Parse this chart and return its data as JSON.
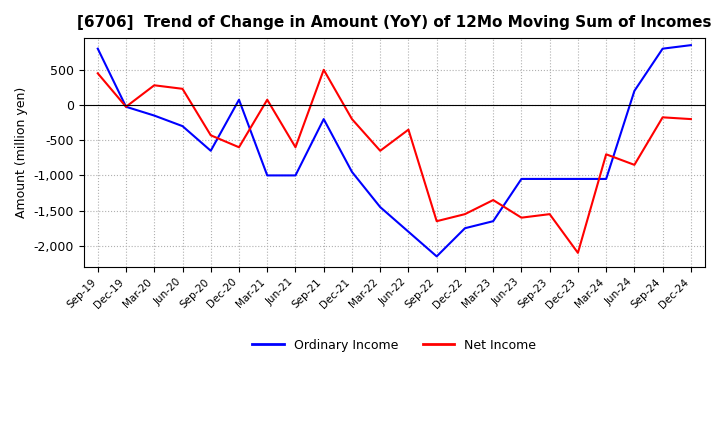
{
  "title": "[6706]  Trend of Change in Amount (YoY) of 12Mo Moving Sum of Incomes",
  "ylabel": "Amount (million yen)",
  "x_labels": [
    "Sep-19",
    "Dec-19",
    "Mar-20",
    "Jun-20",
    "Sep-20",
    "Dec-20",
    "Mar-21",
    "Jun-21",
    "Sep-21",
    "Dec-21",
    "Mar-22",
    "Jun-22",
    "Sep-22",
    "Dec-22",
    "Mar-23",
    "Jun-23",
    "Sep-23",
    "Dec-23",
    "Mar-24",
    "Jun-24",
    "Sep-24",
    "Dec-24"
  ],
  "ordinary_income": [
    800,
    -25,
    -150,
    -300,
    -650,
    75,
    -1000,
    -1000,
    -200,
    -950,
    -1450,
    -1800,
    -2150,
    -1750,
    -1650,
    -1050,
    -1050,
    -1050,
    -1050,
    200,
    800,
    850
  ],
  "net_income": [
    450,
    -25,
    280,
    230,
    -430,
    -600,
    75,
    -600,
    500,
    -200,
    -650,
    -350,
    -1650,
    -1550,
    -1350,
    -1600,
    -1550,
    -2100,
    -700,
    -850,
    -175,
    -200
  ],
  "ordinary_color": "#0000ff",
  "net_color": "#ff0000",
  "ylim": [
    -2300,
    950
  ],
  "yticks": [
    500,
    0,
    -500,
    -1000,
    -1500,
    -2000
  ],
  "background_color": "#ffffff",
  "grid_color": "#b0b0b0",
  "title_fontsize": 11,
  "legend_labels": [
    "Ordinary Income",
    "Net Income"
  ]
}
